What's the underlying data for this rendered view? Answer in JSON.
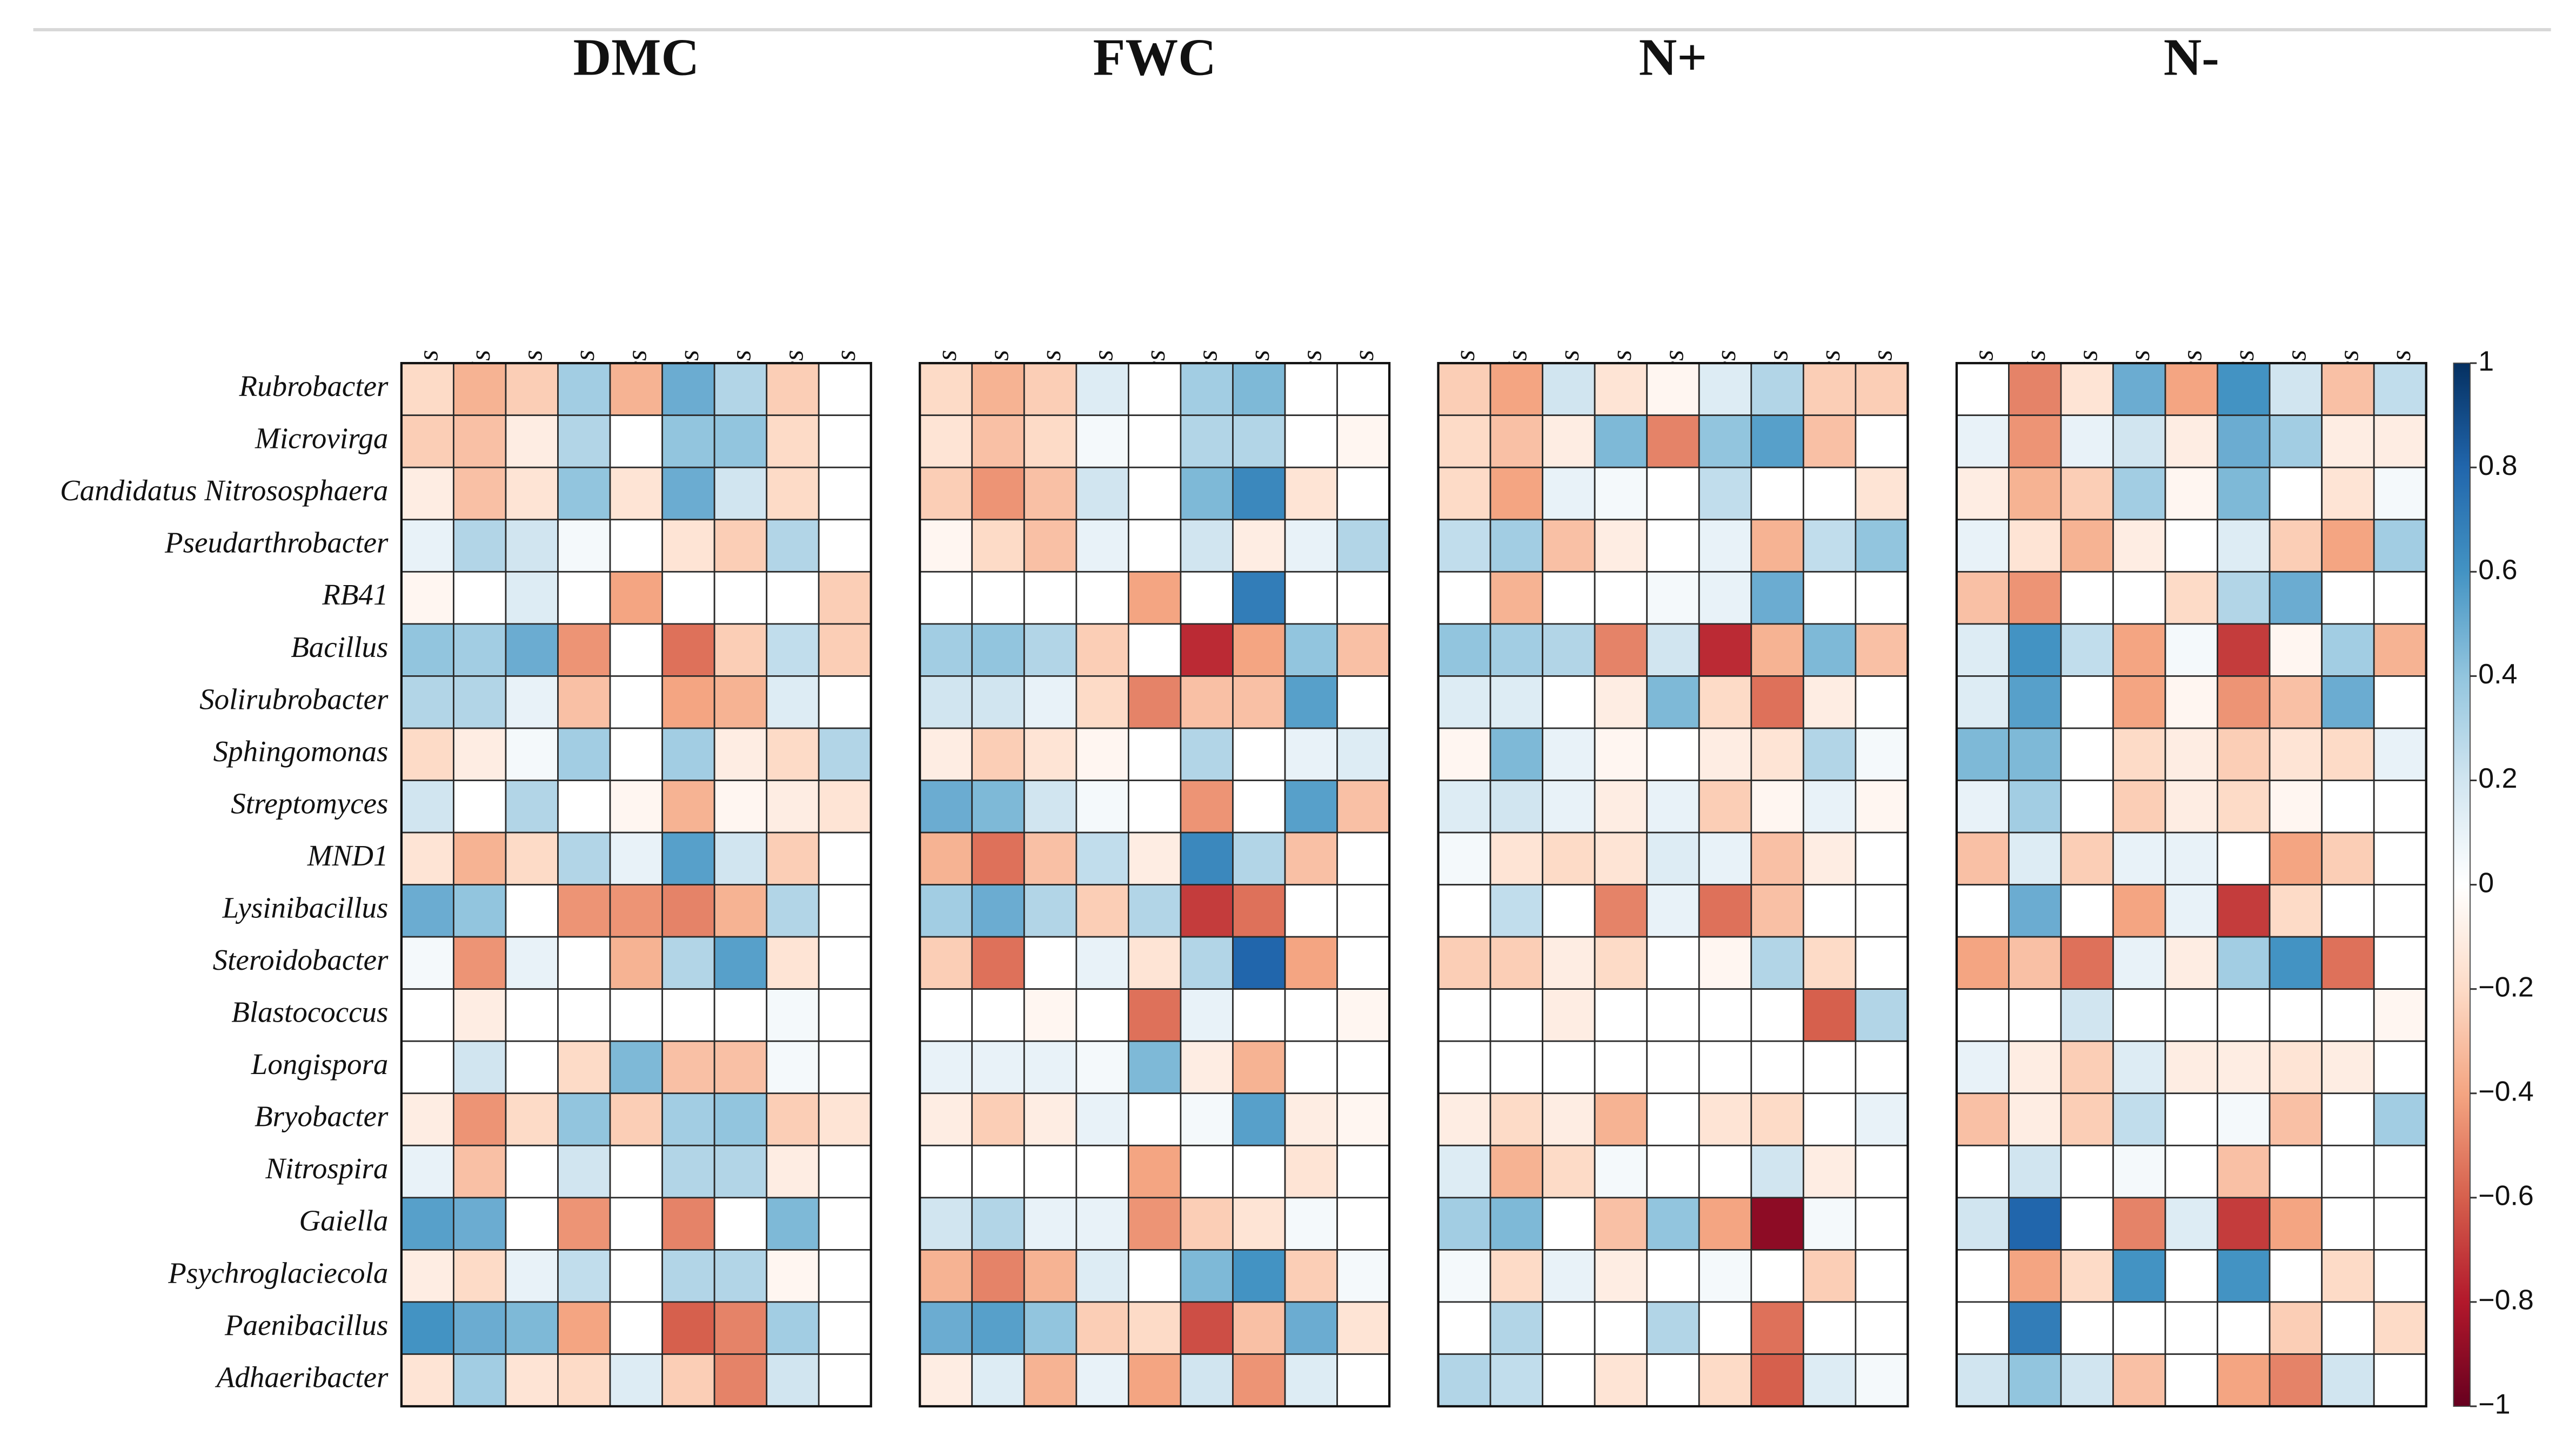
{
  "chart_data": {
    "type": "heatmap",
    "x": [
      "Panagrolaimus",
      "Rhabditis",
      "Cephalobus",
      "Eucephalobus",
      "Acrobeles",
      "Acrobeloides",
      "Prismatolaimus",
      "Aphelenchoides",
      "Aphelenchus"
    ],
    "y": [
      "Rubrobacter",
      "Microvirga",
      "Candidatus Nitrososphaera",
      "Pseudarthrobacter",
      "RB41",
      "Bacillus",
      "Solirubrobacter",
      "Sphingomonas",
      "Streptomyces",
      "MND1",
      "Lysinibacillus",
      "Steroidobacter",
      "Blastococcus",
      "Longispora",
      "Bryobacter",
      "Nitrospira",
      "Gaiella",
      "Psychroglaciecola",
      "Paenibacillus",
      "Adhaeribacter"
    ],
    "zlim": [
      -1,
      1
    ],
    "zticks": [
      {
        "value": 1,
        "label": "1"
      },
      0.8,
      0.6,
      0.4,
      0.2,
      0,
      {
        "value": -0.2,
        "label": "−0.2"
      },
      {
        "value": -0.4,
        "label": "−0.4"
      },
      {
        "value": -0.6,
        "label": "−0.6"
      },
      {
        "value": -0.8,
        "label": "−0.8"
      },
      {
        "value": -1,
        "label": "−1"
      }
    ],
    "colors": [
      "#67001f",
      "#b2182b",
      "#d6604d",
      "#f4a582",
      "#fddbc7",
      "#ffffff",
      "#d1e5f0",
      "#92c5de",
      "#4393c3",
      "#2166ac",
      "#053061"
    ],
    "panels": [
      {
        "title": "DMC",
        "values": [
          [
            -0.2,
            -0.35,
            -0.25,
            0.35,
            -0.35,
            0.5,
            0.3,
            -0.25,
            0
          ],
          [
            -0.25,
            -0.3,
            -0.1,
            0.3,
            0,
            0.4,
            0.4,
            -0.2,
            0
          ],
          [
            -0.1,
            -0.3,
            -0.15,
            0.4,
            -0.15,
            0.5,
            0.2,
            -0.2,
            0
          ],
          [
            0.1,
            0.3,
            0.2,
            0.05,
            0,
            -0.15,
            -0.25,
            0.3,
            0
          ],
          [
            -0.05,
            0,
            0.15,
            0,
            -0.4,
            0,
            0,
            0,
            -0.25
          ],
          [
            0.4,
            0.35,
            0.5,
            -0.45,
            0,
            -0.55,
            -0.25,
            0.25,
            -0.25
          ],
          [
            0.3,
            0.3,
            0.1,
            -0.3,
            0,
            -0.4,
            -0.35,
            0.15,
            0
          ],
          [
            -0.2,
            -0.1,
            0.05,
            0.35,
            0,
            0.35,
            -0.1,
            -0.2,
            0.3
          ],
          [
            0.2,
            0,
            0.3,
            0,
            -0.05,
            -0.35,
            -0.05,
            -0.1,
            -0.15
          ],
          [
            -0.15,
            -0.35,
            -0.2,
            0.3,
            0.1,
            0.55,
            0.2,
            -0.25,
            0
          ],
          [
            0.5,
            0.4,
            0,
            -0.45,
            -0.45,
            -0.5,
            -0.35,
            0.3,
            0
          ],
          [
            0.05,
            -0.45,
            0.1,
            0,
            -0.35,
            0.3,
            0.55,
            -0.15,
            0
          ],
          [
            0,
            -0.1,
            0,
            0,
            0,
            0,
            0,
            0.05,
            0
          ],
          [
            0,
            0.2,
            0,
            -0.2,
            0.45,
            -0.3,
            -0.3,
            0.05,
            0
          ],
          [
            -0.1,
            -0.45,
            -0.2,
            0.4,
            -0.25,
            0.35,
            0.4,
            -0.25,
            -0.15
          ],
          [
            0.1,
            -0.3,
            0,
            0.2,
            0,
            0.3,
            0.3,
            -0.1,
            0
          ],
          [
            0.55,
            0.5,
            0,
            -0.45,
            0,
            -0.5,
            0,
            0.45,
            0
          ],
          [
            -0.1,
            -0.2,
            0.1,
            0.25,
            0,
            0.3,
            0.3,
            -0.05,
            0
          ],
          [
            0.6,
            0.5,
            0.45,
            -0.4,
            0,
            -0.6,
            -0.5,
            0.35,
            0
          ],
          [
            -0.15,
            0.35,
            -0.15,
            -0.2,
            0.15,
            -0.25,
            -0.5,
            0.2,
            0
          ]
        ]
      },
      {
        "title": "FWC",
        "values": [
          [
            -0.2,
            -0.35,
            -0.25,
            0.15,
            0,
            0.35,
            0.45,
            0,
            0
          ],
          [
            -0.15,
            -0.3,
            -0.2,
            0.05,
            0,
            0.3,
            0.3,
            0,
            -0.05
          ],
          [
            -0.25,
            -0.45,
            -0.3,
            0.2,
            0,
            0.45,
            0.65,
            -0.15,
            0
          ],
          [
            -0.05,
            -0.2,
            -0.3,
            0.1,
            0,
            0.2,
            -0.1,
            0.1,
            0.3
          ],
          [
            0,
            0,
            0,
            0,
            -0.4,
            0,
            0.7,
            0,
            0
          ],
          [
            0.35,
            0.4,
            0.3,
            -0.25,
            0,
            -0.75,
            -0.4,
            0.4,
            -0.3
          ],
          [
            0.2,
            0.2,
            0.1,
            -0.2,
            -0.5,
            -0.3,
            -0.3,
            0.55,
            0
          ],
          [
            -0.1,
            -0.25,
            -0.15,
            -0.05,
            0,
            0.3,
            0,
            0.1,
            0.15
          ],
          [
            0.5,
            0.45,
            0.2,
            0.05,
            0,
            -0.45,
            0,
            0.55,
            -0.3
          ],
          [
            -0.35,
            -0.55,
            -0.3,
            0.25,
            -0.1,
            0.65,
            0.3,
            -0.3,
            0
          ],
          [
            0.35,
            0.5,
            0.3,
            -0.25,
            0.3,
            -0.7,
            -0.55,
            0,
            0
          ],
          [
            -0.25,
            -0.55,
            0,
            0.1,
            -0.15,
            0.3,
            0.8,
            -0.4,
            0
          ],
          [
            0,
            0,
            -0.05,
            0,
            -0.55,
            0.1,
            0,
            0,
            -0.05
          ],
          [
            0.1,
            0.1,
            0.1,
            0.05,
            0.45,
            -0.1,
            -0.35,
            0,
            0
          ],
          [
            -0.1,
            -0.25,
            -0.1,
            0.1,
            0,
            0.05,
            0.55,
            -0.1,
            -0.05
          ],
          [
            0,
            0,
            0,
            0,
            -0.4,
            0,
            0,
            -0.15,
            0
          ],
          [
            0.2,
            0.3,
            0.1,
            0.1,
            -0.45,
            -0.25,
            -0.15,
            0.05,
            0
          ],
          [
            -0.35,
            -0.5,
            -0.35,
            0.15,
            0,
            0.45,
            0.6,
            -0.25,
            0.05
          ],
          [
            0.5,
            0.55,
            0.4,
            -0.25,
            -0.2,
            -0.65,
            -0.3,
            0.5,
            -0.15
          ],
          [
            -0.1,
            0.15,
            -0.35,
            0.1,
            -0.4,
            0.2,
            -0.45,
            0.15,
            0
          ]
        ]
      },
      {
        "title": "N+",
        "values": [
          [
            -0.25,
            -0.4,
            0.2,
            -0.15,
            -0.05,
            0.15,
            0.3,
            -0.25,
            -0.25
          ],
          [
            -0.2,
            -0.3,
            -0.1,
            0.45,
            -0.5,
            0.4,
            0.55,
            -0.3,
            0
          ],
          [
            -0.2,
            -0.4,
            0.1,
            0.05,
            0,
            0.25,
            0,
            0,
            -0.15
          ],
          [
            0.25,
            0.35,
            -0.3,
            -0.1,
            0,
            0.1,
            -0.35,
            0.25,
            0.4
          ],
          [
            0,
            -0.35,
            0,
            0,
            0.05,
            0.1,
            0.5,
            0,
            0
          ],
          [
            0.4,
            0.35,
            0.3,
            -0.5,
            0.2,
            -0.75,
            -0.35,
            0.45,
            -0.3
          ],
          [
            0.15,
            0.15,
            0,
            -0.1,
            0.45,
            -0.2,
            -0.55,
            -0.1,
            0
          ],
          [
            -0.05,
            0.45,
            0.1,
            -0.05,
            0,
            -0.1,
            -0.15,
            0.3,
            0.05
          ],
          [
            0.15,
            0.2,
            0.1,
            -0.1,
            0.1,
            -0.25,
            -0.05,
            0.1,
            -0.05
          ],
          [
            0.05,
            -0.15,
            -0.2,
            -0.15,
            0.15,
            0.1,
            -0.3,
            -0.1,
            0
          ],
          [
            0,
            0.25,
            0,
            -0.5,
            0.1,
            -0.55,
            -0.3,
            0,
            0
          ],
          [
            -0.25,
            -0.25,
            -0.1,
            -0.2,
            0,
            -0.05,
            0.3,
            -0.2,
            0
          ],
          [
            0,
            0,
            -0.1,
            0,
            0,
            0,
            0,
            -0.6,
            0.3
          ],
          [
            0,
            0,
            0,
            0,
            0,
            0,
            0,
            0,
            0
          ],
          [
            -0.1,
            -0.2,
            -0.1,
            -0.35,
            0,
            -0.15,
            -0.2,
            0,
            0.1
          ],
          [
            0.15,
            -0.35,
            -0.2,
            0.05,
            0,
            0,
            0.2,
            -0.1,
            0
          ],
          [
            0.35,
            0.45,
            0,
            -0.3,
            0.4,
            -0.4,
            -0.9,
            0.05,
            0
          ],
          [
            0.05,
            -0.2,
            0.1,
            -0.1,
            0,
            0.05,
            0,
            -0.25,
            0
          ],
          [
            0,
            0.3,
            0,
            0,
            0.3,
            0,
            -0.55,
            0,
            0
          ],
          [
            0.3,
            0.25,
            0,
            -0.15,
            0,
            -0.2,
            -0.6,
            0.15,
            0.05
          ]
        ]
      },
      {
        "title": "N-",
        "values": [
          [
            0,
            -0.5,
            -0.15,
            0.5,
            -0.4,
            0.6,
            0.2,
            -0.3,
            0.25
          ],
          [
            0.1,
            -0.45,
            0.1,
            0.2,
            -0.1,
            0.5,
            0.35,
            -0.1,
            -0.1
          ],
          [
            -0.1,
            -0.35,
            -0.25,
            0.35,
            -0.05,
            0.45,
            0,
            -0.15,
            0.05
          ],
          [
            0.1,
            -0.15,
            -0.35,
            -0.1,
            0,
            0.15,
            -0.25,
            -0.4,
            0.35
          ],
          [
            -0.3,
            -0.45,
            0,
            0,
            -0.2,
            0.3,
            0.5,
            0,
            0
          ],
          [
            0.15,
            0.6,
            0.25,
            -0.4,
            0.05,
            -0.7,
            -0.05,
            0.35,
            -0.35
          ],
          [
            0.15,
            0.55,
            0,
            -0.4,
            -0.05,
            -0.45,
            -0.3,
            0.5,
            0
          ],
          [
            0.45,
            0.45,
            0,
            -0.2,
            -0.1,
            -0.25,
            -0.15,
            -0.2,
            0.1
          ],
          [
            0.1,
            0.35,
            0,
            -0.25,
            -0.1,
            -0.2,
            -0.05,
            0,
            0
          ],
          [
            -0.3,
            0.15,
            -0.25,
            0.1,
            0.1,
            0,
            -0.4,
            -0.25,
            0
          ],
          [
            0,
            0.5,
            0,
            -0.4,
            0.1,
            -0.7,
            -0.2,
            0,
            0
          ],
          [
            -0.4,
            -0.3,
            -0.55,
            0.1,
            -0.1,
            0.35,
            0.6,
            -0.55,
            0
          ],
          [
            0,
            0,
            0.2,
            0,
            0,
            0,
            0,
            0,
            -0.05
          ],
          [
            0.1,
            -0.1,
            -0.25,
            0.15,
            -0.1,
            -0.1,
            -0.15,
            -0.1,
            0
          ],
          [
            -0.3,
            -0.1,
            -0.25,
            0.25,
            0,
            0.05,
            -0.3,
            0,
            0.35
          ],
          [
            0,
            0.2,
            0,
            0.05,
            0,
            -0.3,
            0,
            0,
            0
          ],
          [
            0.2,
            0.8,
            0,
            -0.5,
            0.15,
            -0.7,
            -0.4,
            0,
            0
          ],
          [
            0,
            -0.4,
            -0.2,
            0.6,
            0,
            0.6,
            0,
            -0.2,
            0
          ],
          [
            0,
            0.7,
            0,
            0,
            0,
            0,
            -0.25,
            0,
            -0.2
          ],
          [
            0.2,
            0.4,
            0.2,
            -0.3,
            0,
            -0.4,
            -0.5,
            0.2,
            0
          ]
        ]
      }
    ]
  }
}
